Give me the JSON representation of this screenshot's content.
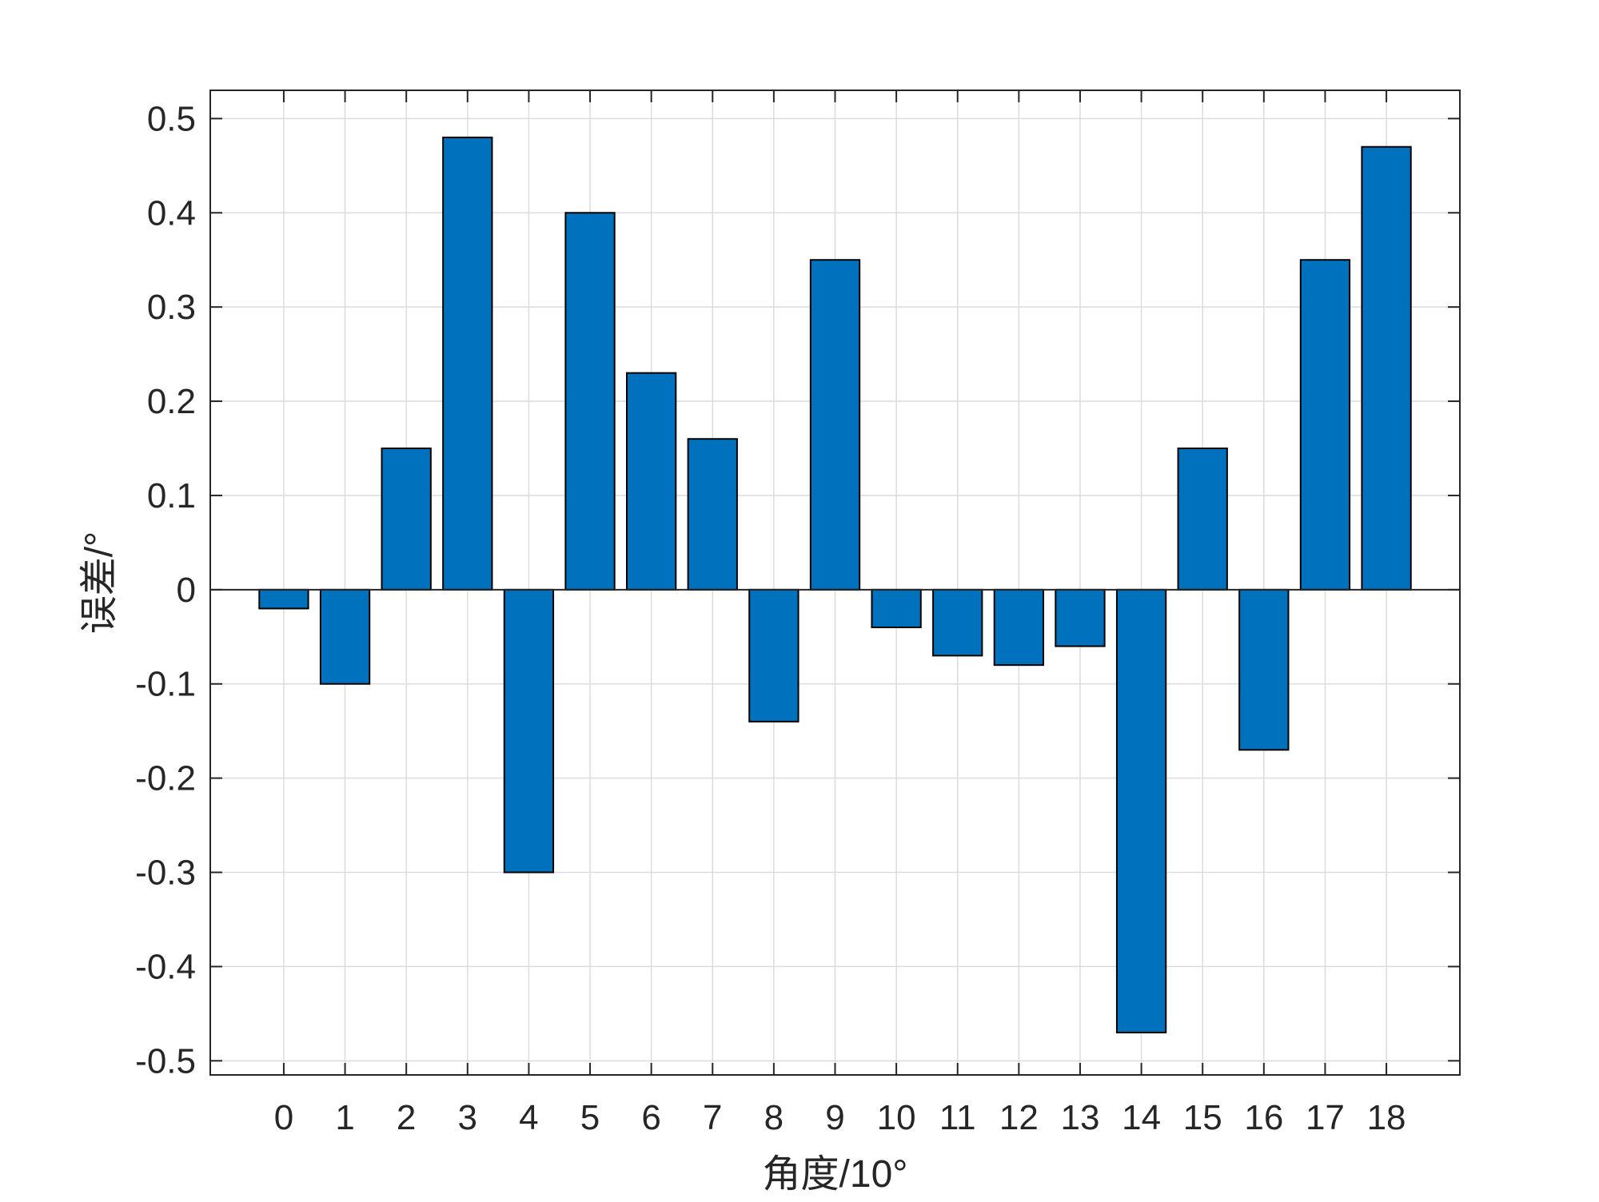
{
  "chart_data": {
    "type": "bar",
    "categories": [
      "0",
      "1",
      "2",
      "3",
      "4",
      "5",
      "6",
      "7",
      "8",
      "9",
      "10",
      "11",
      "12",
      "13",
      "14",
      "15",
      "16",
      "17",
      "18"
    ],
    "values": [
      -0.02,
      -0.1,
      0.15,
      0.48,
      -0.3,
      0.4,
      0.23,
      0.16,
      -0.14,
      0.35,
      -0.04,
      -0.07,
      -0.08,
      -0.06,
      -0.47,
      0.15,
      -0.17,
      0.35,
      0.47
    ],
    "title": "",
    "xlabel": "角度/10°",
    "ylabel": "误差/°",
    "ylim": [
      -0.515,
      0.53
    ],
    "xlim": [
      -1.2,
      19.2
    ],
    "yticks": [
      -0.5,
      -0.4,
      -0.3,
      -0.2,
      -0.1,
      0,
      0.1,
      0.2,
      0.3,
      0.4,
      0.5
    ],
    "ytick_labels": [
      "-0.5",
      "-0.4",
      "-0.3",
      "-0.2",
      "-0.1",
      "0",
      "0.1",
      "0.2",
      "0.3",
      "0.4",
      "0.5"
    ],
    "grid": true,
    "bar_color": "#0072BD",
    "edge_color": "#000000"
  }
}
